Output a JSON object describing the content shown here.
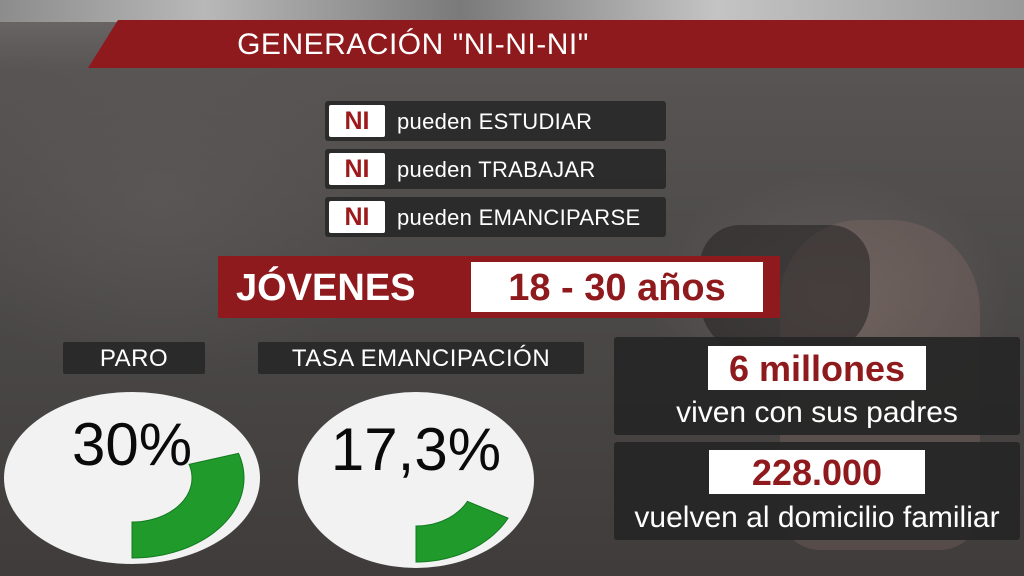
{
  "title": "GENERACIÓN \"NI-NI-NI\"",
  "ni_rows": [
    {
      "badge": "NI",
      "text": "pueden ESTUDIAR"
    },
    {
      "badge": "NI",
      "text": "pueden TRABAJAR"
    },
    {
      "badge": "NI",
      "text": "pueden EMANCIPARSE"
    }
  ],
  "jovenes": {
    "label": "JÓVENES",
    "age_range": "18 - 30 años"
  },
  "paro": {
    "label": "PARO",
    "value_text": "30%",
    "fraction": 0.3
  },
  "emancipacion": {
    "label": "TASA EMANCIPACIÓN",
    "value_text": "17,3%",
    "fraction": 0.173
  },
  "stats": [
    {
      "value": "6 millones",
      "description": "viven con sus padres"
    },
    {
      "value": "228.000",
      "description": "vuelven al domicilio familiar"
    }
  ],
  "colors": {
    "accent_red": "#8f1a1d",
    "gauge_green": "#1f9a2b",
    "panel_dark": "#282828"
  }
}
